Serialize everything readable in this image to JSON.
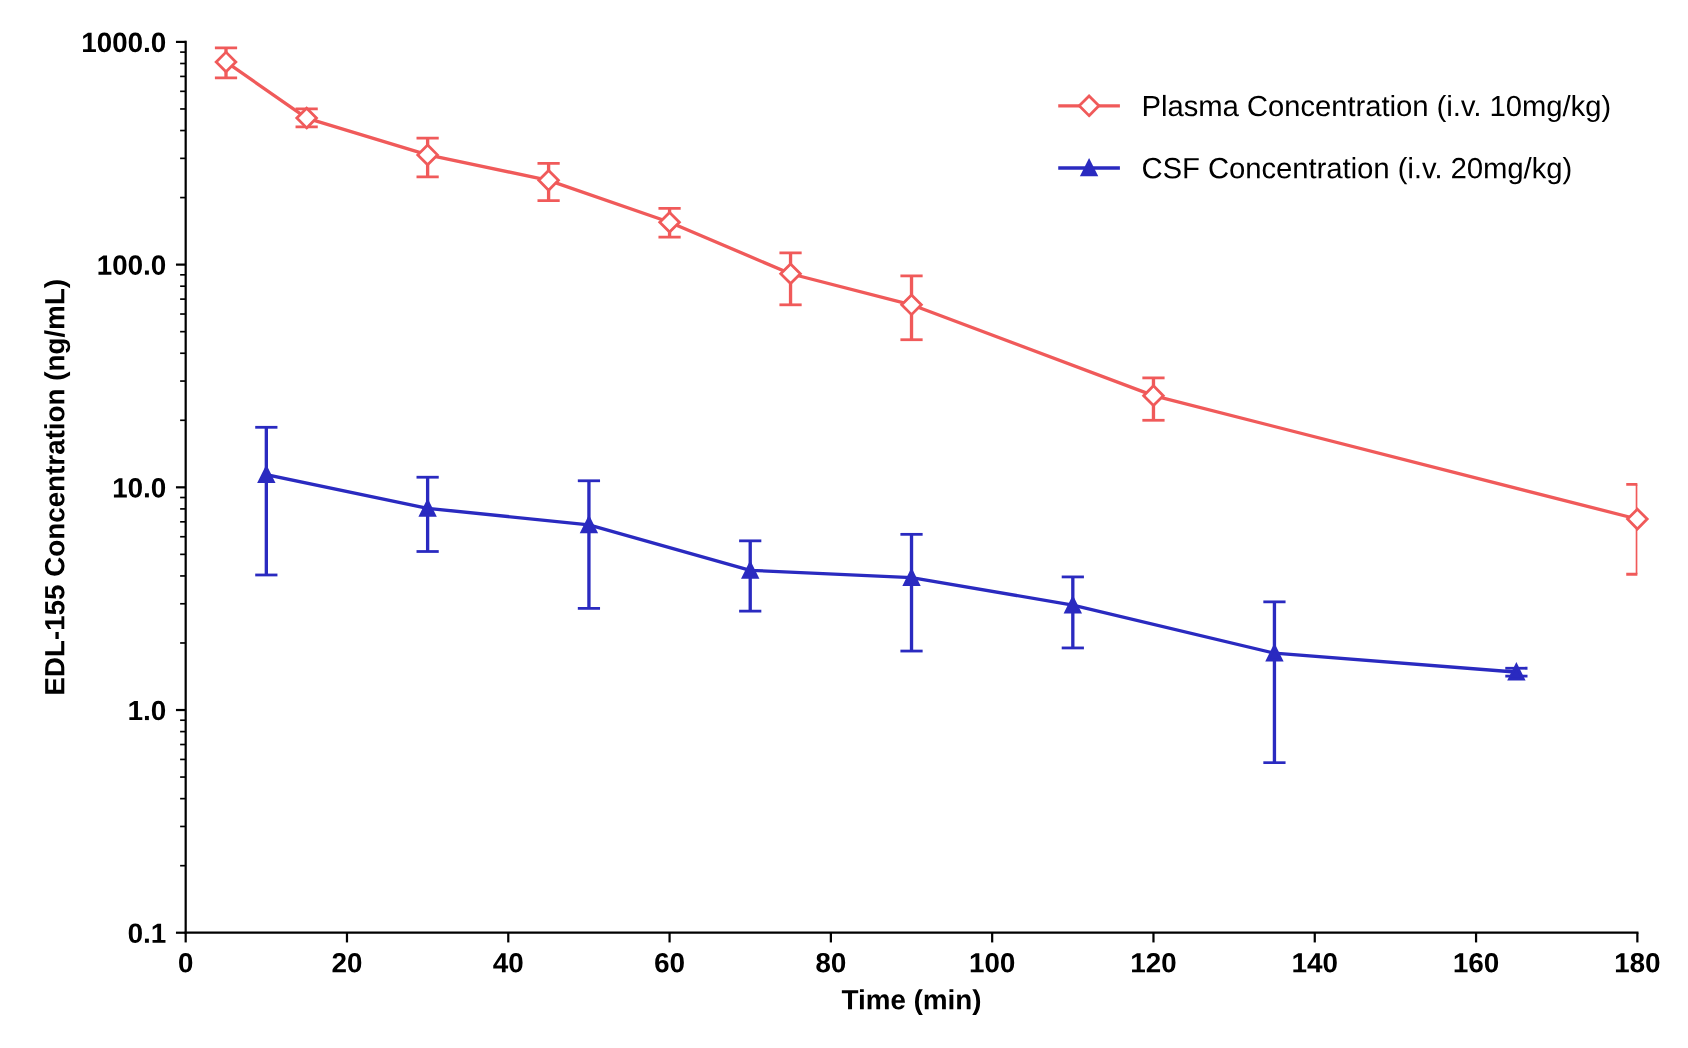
{
  "chart_data": {
    "type": "line",
    "xlabel": "Time (min)",
    "ylabel": "EDL-155 Concentration (ng/mL)",
    "log": "y",
    "xlim": [
      0,
      180
    ],
    "xticks": [
      0,
      20,
      40,
      60,
      80,
      100,
      120,
      140,
      160,
      180
    ],
    "ylim": [
      0.1,
      1000
    ],
    "yticks": [
      {
        "value": 0.1,
        "label": "0.1"
      },
      {
        "value": 1,
        "label": "1.0"
      },
      {
        "value": 10,
        "label": "10.0"
      },
      {
        "value": 100,
        "label": "100.0"
      },
      {
        "value": 1000,
        "label": "1000.0"
      }
    ],
    "grid": false,
    "legend": "top right",
    "series": [
      {
        "name": "Plasma Concentration (i.v. 10mg/kg)",
        "color": "#f05a5a",
        "marker": "diamond",
        "x": [
          5,
          15,
          30,
          45,
          60,
          75,
          90,
          120,
          180
        ],
        "values": [
          813,
          455,
          311,
          239,
          155,
          91,
          66,
          25.8,
          7.2
        ],
        "errors": [
          [
            689,
            940
          ],
          [
            415,
            500
          ],
          [
            248,
            370
          ],
          [
            194,
            285
          ],
          [
            133,
            179
          ],
          [
            66,
            113
          ],
          [
            46,
            89
          ],
          [
            20,
            31
          ],
          [
            4.07,
            10.3
          ]
        ]
      },
      {
        "name": "CSF Concentration (i.v. 20mg/kg)",
        "color": "#2a2ac0",
        "marker": "triangle",
        "x": [
          10,
          30,
          50,
          70,
          90,
          110,
          135,
          165
        ],
        "values": [
          11.4,
          8.05,
          6.78,
          4.24,
          3.93,
          2.96,
          1.8,
          1.48
        ],
        "errors": [
          [
            4.04,
            18.6
          ],
          [
            5.15,
            11.1
          ],
          [
            2.86,
            10.7
          ],
          [
            2.78,
            5.75
          ],
          [
            1.84,
            6.15
          ],
          [
            1.9,
            3.96
          ],
          [
            0.58,
            3.06
          ],
          [
            1.42,
            1.54
          ]
        ]
      }
    ]
  }
}
